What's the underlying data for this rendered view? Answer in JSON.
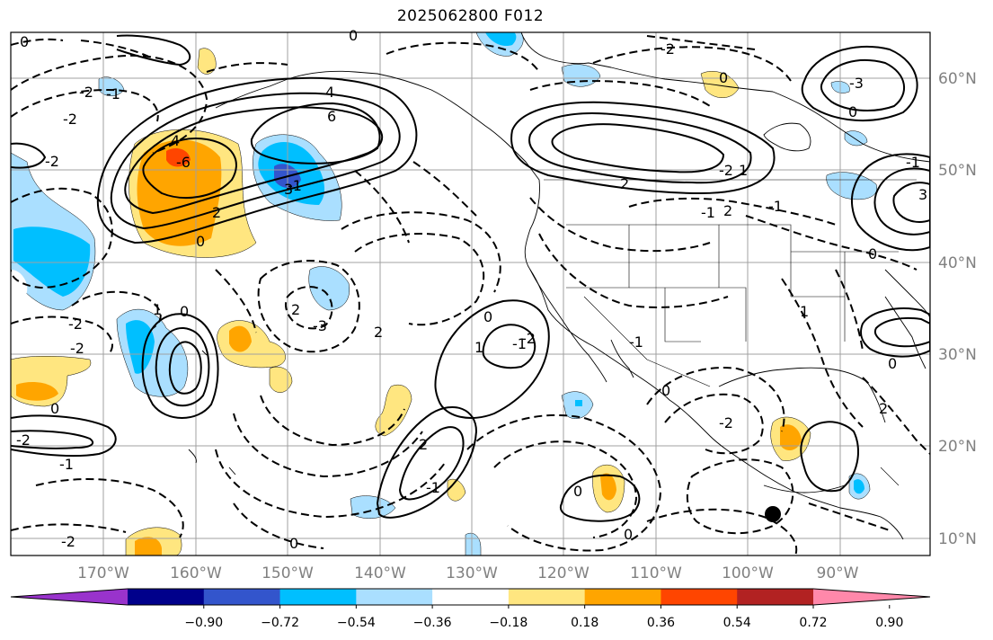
{
  "title": "2025062800 F012",
  "map": {
    "lon_ticks": [
      "170°W",
      "160°W",
      "150°W",
      "140°W",
      "130°W",
      "120°W",
      "110°W",
      "100°W",
      "90°W"
    ],
    "lat_ticks": [
      "60°N",
      "50°N",
      "40°N",
      "30°N",
      "20°N",
      "10°N"
    ],
    "grid": true,
    "contour_labels": [
      "0",
      "-2",
      "-2",
      "-1",
      "4",
      "6",
      "4",
      "-6",
      "2",
      "-2",
      "0",
      "-2",
      "-1",
      "0",
      "-2",
      "-2",
      "1",
      "0",
      "2",
      "-1",
      "0",
      "-2",
      "-3",
      "2",
      "0",
      "-1",
      "-2",
      "2",
      "-1",
      "0",
      "1",
      "2",
      "3",
      "-1",
      "-2",
      "2",
      "1",
      "-1",
      "0",
      "-2",
      "0",
      "0",
      "-3",
      "3",
      "-1",
      "0",
      "2",
      "1",
      "0",
      "-1",
      "0",
      "-2",
      "0"
    ],
    "marker": "black-circle"
  },
  "colorbar": {
    "tick_labels": [
      "−0.90",
      "−0.72",
      "−0.54",
      "−0.36",
      "−0.18",
      "0.18",
      "0.36",
      "0.54",
      "0.72",
      "0.90"
    ],
    "colors": [
      "#9933cc",
      "#00008b",
      "#3355cc",
      "#00bfff",
      "#aadfff",
      "#ffffff",
      "#ffe680",
      "#ffa500",
      "#ff4500",
      "#b22222",
      "#ff88aa"
    ]
  }
}
